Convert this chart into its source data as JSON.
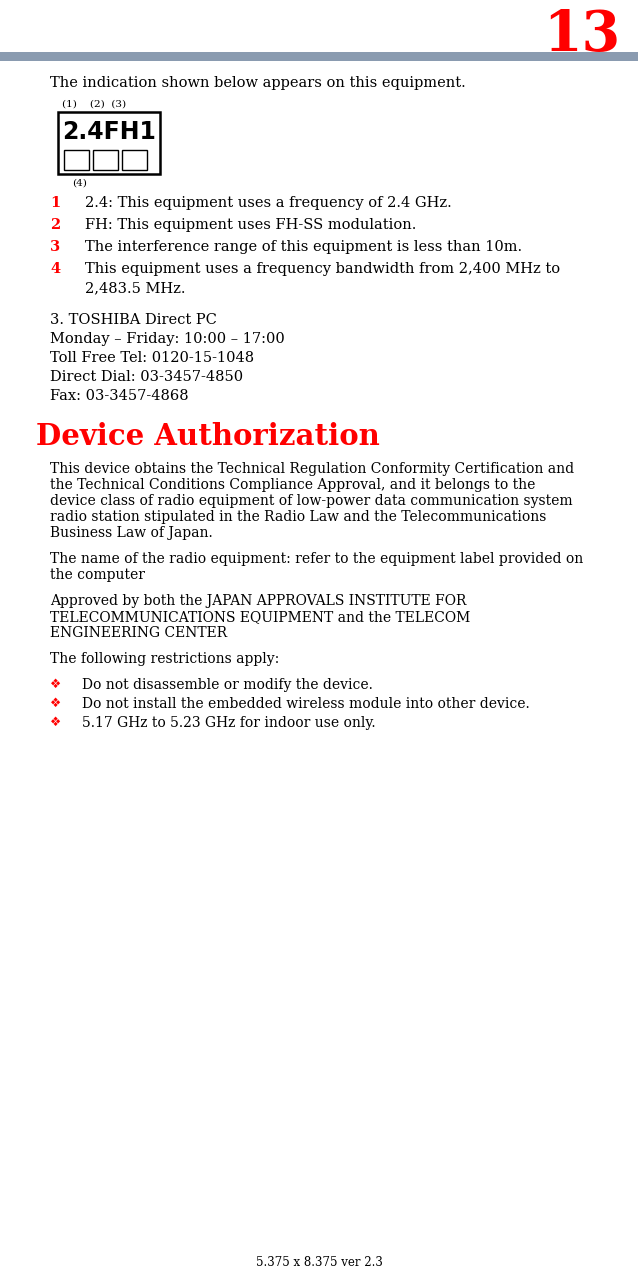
{
  "page_num": "13",
  "page_num_color": "#ff0000",
  "header_bar_color": "#8a9bb0",
  "bg_color": "#ffffff",
  "text_color": "#000000",
  "red_color": "#ff0000",
  "footer_text": "5.375 x 8.375 ver 2.3",
  "intro_text": "The indication shown below appears on this equipment.",
  "label_above_box": "(1)    (2)  (3)",
  "box_main_text": "2.4FH1",
  "label_below_box": "(4)",
  "numbered_items": [
    {
      "num": "1",
      "text": "2.4: This equipment uses a frequency of 2.4 GHz."
    },
    {
      "num": "2",
      "text": "FH: This equipment uses FH-SS modulation."
    },
    {
      "num": "3",
      "text": "The interference range of this equipment is less than 10m."
    },
    {
      "num": "4",
      "text": "This equipment uses a frequency bandwidth from 2,400 MHz to\n        2,483.5 MHz."
    }
  ],
  "contact_lines": [
    "3. TOSHIBA Direct PC",
    "Monday – Friday: 10:00 – 17:00",
    "Toll Free Tel: 0120-15-1048",
    "Direct Dial: 03-3457-4850",
    "Fax: 03-3457-4868"
  ],
  "section_heading": "Device Authorization",
  "body_paragraphs": [
    "This device obtains the Technical Regulation Conformity Certification and\nthe Technical Conditions Compliance Approval, and it belongs to the\ndevice class of radio equipment of low-power data communication system\nradio station stipulated in the Radio Law and the Telecommunications\nBusiness Law of Japan.",
    "The name of the radio equipment: refer to the equipment label provided on\nthe computer",
    "Approved by both the JAPAN APPROVALS INSTITUTE FOR\nTELECOMMUNICATIONS EQUIPMENT and the TELECOM\nENGINEERING CENTER",
    "The following restrictions apply:"
  ],
  "bullet_items": [
    "Do not disassemble or modify the device.",
    "Do not install the embedded wireless module into other device.",
    "5.17 GHz to 5.23 GHz for indoor use only."
  ]
}
